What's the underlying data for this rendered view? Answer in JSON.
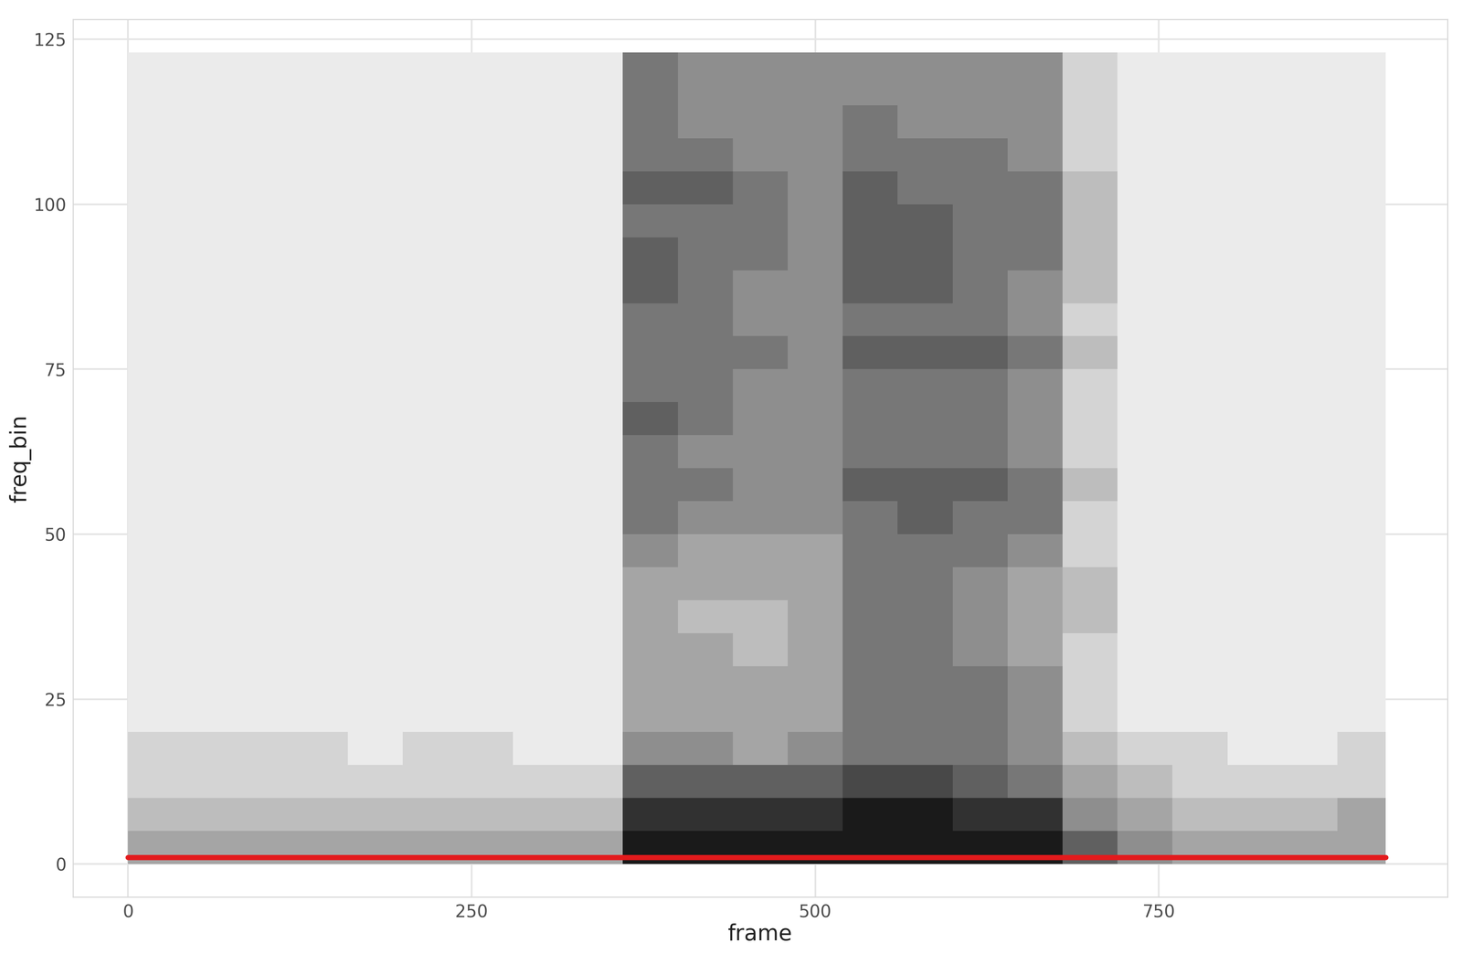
{
  "chart_data": {
    "type": "heatmap",
    "x_label": "frame",
    "y_label": "freq_bin",
    "xlim": [
      -40,
      960
    ],
    "xticks": [
      0,
      250,
      500,
      750
    ],
    "ylim": [
      -5,
      128
    ],
    "yticks": [
      0,
      25,
      50,
      75,
      100,
      125
    ],
    "grid": true,
    "x_edges": [
      0,
      40,
      80,
      120,
      160,
      200,
      240,
      280,
      320,
      360,
      400,
      440,
      480,
      520,
      560,
      600,
      640,
      680,
      720,
      760,
      800,
      840,
      880,
      915
    ],
    "y_edges": [
      0,
      5,
      10,
      15,
      20,
      25,
      30,
      35,
      40,
      45,
      50,
      55,
      60,
      65,
      70,
      75,
      80,
      85,
      90,
      95,
      100,
      105,
      110,
      115,
      120,
      123
    ],
    "cells": [
      [
        3,
        3,
        3,
        3,
        3,
        3,
        3,
        3,
        3,
        9,
        9,
        9,
        9,
        9,
        9,
        9,
        9,
        6,
        4,
        3,
        3,
        3,
        3
      ],
      [
        2,
        2,
        2,
        2,
        2,
        2,
        2,
        2,
        2,
        8,
        8,
        8,
        8,
        9,
        9,
        8,
        8,
        4,
        3,
        2,
        2,
        2,
        3
      ],
      [
        1,
        1,
        1,
        1,
        1,
        1,
        1,
        1,
        1,
        6,
        6,
        6,
        6,
        7,
        7,
        6,
        5,
        3,
        2,
        1,
        1,
        1,
        1
      ],
      [
        1,
        1,
        1,
        1,
        0,
        1,
        1,
        0,
        0,
        4,
        4,
        3,
        4,
        5,
        5,
        5,
        4,
        2,
        1,
        1,
        0,
        0,
        1
      ],
      [
        0,
        0,
        0,
        0,
        0,
        0,
        0,
        0,
        0,
        3,
        3,
        3,
        3,
        5,
        5,
        5,
        4,
        1,
        0,
        0,
        0,
        0,
        0
      ],
      [
        0,
        0,
        0,
        0,
        0,
        0,
        0,
        0,
        0,
        3,
        3,
        3,
        3,
        5,
        5,
        5,
        4,
        1,
        0,
        0,
        0,
        0,
        0
      ],
      [
        0,
        0,
        0,
        0,
        0,
        0,
        0,
        0,
        0,
        3,
        3,
        2,
        3,
        5,
        5,
        4,
        3,
        1,
        0,
        0,
        0,
        0,
        0
      ],
      [
        0,
        0,
        0,
        0,
        0,
        0,
        0,
        0,
        0,
        3,
        2,
        2,
        3,
        5,
        5,
        4,
        3,
        2,
        0,
        0,
        0,
        0,
        0
      ],
      [
        0,
        0,
        0,
        0,
        0,
        0,
        0,
        0,
        0,
        3,
        3,
        3,
        3,
        5,
        5,
        4,
        3,
        2,
        0,
        0,
        0,
        0,
        0
      ],
      [
        0,
        0,
        0,
        0,
        0,
        0,
        0,
        0,
        0,
        4,
        3,
        3,
        3,
        5,
        5,
        5,
        4,
        1,
        0,
        0,
        0,
        0,
        0
      ],
      [
        0,
        0,
        0,
        0,
        0,
        0,
        0,
        0,
        0,
        5,
        4,
        4,
        4,
        5,
        6,
        5,
        5,
        1,
        0,
        0,
        0,
        0,
        0
      ],
      [
        0,
        0,
        0,
        0,
        0,
        0,
        0,
        0,
        0,
        5,
        5,
        4,
        4,
        6,
        6,
        6,
        5,
        2,
        0,
        0,
        0,
        0,
        0
      ],
      [
        0,
        0,
        0,
        0,
        0,
        0,
        0,
        0,
        0,
        5,
        4,
        4,
        4,
        5,
        5,
        5,
        4,
        1,
        0,
        0,
        0,
        0,
        0
      ],
      [
        0,
        0,
        0,
        0,
        0,
        0,
        0,
        0,
        0,
        6,
        5,
        4,
        4,
        5,
        5,
        5,
        4,
        1,
        0,
        0,
        0,
        0,
        0
      ],
      [
        0,
        0,
        0,
        0,
        0,
        0,
        0,
        0,
        0,
        5,
        5,
        4,
        4,
        5,
        5,
        5,
        4,
        1,
        0,
        0,
        0,
        0,
        0
      ],
      [
        0,
        0,
        0,
        0,
        0,
        0,
        0,
        0,
        0,
        5,
        5,
        5,
        4,
        6,
        6,
        6,
        5,
        2,
        0,
        0,
        0,
        0,
        0
      ],
      [
        0,
        0,
        0,
        0,
        0,
        0,
        0,
        0,
        0,
        5,
        5,
        4,
        4,
        5,
        5,
        5,
        4,
        1,
        0,
        0,
        0,
        0,
        0
      ],
      [
        0,
        0,
        0,
        0,
        0,
        0,
        0,
        0,
        0,
        6,
        5,
        4,
        4,
        6,
        6,
        5,
        4,
        2,
        0,
        0,
        0,
        0,
        0
      ],
      [
        0,
        0,
        0,
        0,
        0,
        0,
        0,
        0,
        0,
        6,
        5,
        5,
        4,
        6,
        6,
        5,
        5,
        2,
        0,
        0,
        0,
        0,
        0
      ],
      [
        0,
        0,
        0,
        0,
        0,
        0,
        0,
        0,
        0,
        5,
        5,
        5,
        4,
        6,
        6,
        5,
        5,
        2,
        0,
        0,
        0,
        0,
        0
      ],
      [
        0,
        0,
        0,
        0,
        0,
        0,
        0,
        0,
        0,
        6,
        6,
        5,
        4,
        6,
        5,
        5,
        5,
        2,
        0,
        0,
        0,
        0,
        0
      ],
      [
        0,
        0,
        0,
        0,
        0,
        0,
        0,
        0,
        0,
        5,
        5,
        4,
        4,
        5,
        5,
        5,
        4,
        1,
        0,
        0,
        0,
        0,
        0
      ],
      [
        0,
        0,
        0,
        0,
        0,
        0,
        0,
        0,
        0,
        5,
        4,
        4,
        4,
        5,
        4,
        4,
        4,
        1,
        0,
        0,
        0,
        0,
        0
      ],
      [
        0,
        0,
        0,
        0,
        0,
        0,
        0,
        0,
        0,
        5,
        4,
        4,
        4,
        4,
        4,
        4,
        4,
        1,
        0,
        0,
        0,
        0,
        0
      ],
      [
        0,
        0,
        0,
        0,
        0,
        0,
        0,
        0,
        0,
        5,
        4,
        4,
        4,
        4,
        4,
        4,
        4,
        1,
        0,
        0,
        0,
        0,
        0
      ]
    ],
    "series": [
      {
        "type": "line",
        "color": "#e31a1c",
        "x": [
          0,
          915
        ],
        "values": [
          1,
          1
        ]
      }
    ]
  }
}
